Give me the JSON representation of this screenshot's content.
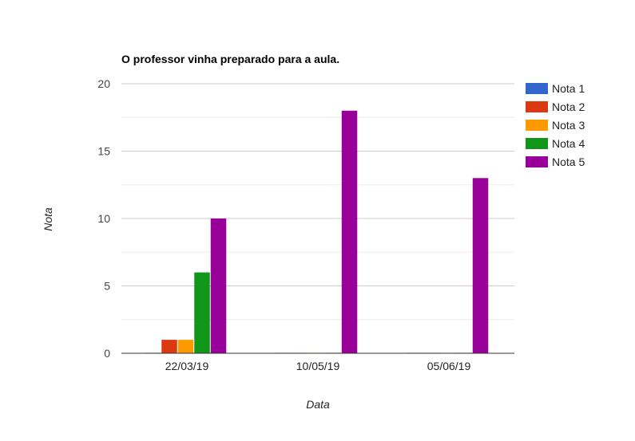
{
  "chart_data": {
    "type": "bar",
    "title": "O professor vinha preparado para a aula.",
    "xlabel": "Data",
    "ylabel": "Nota",
    "categories": [
      "22/03/19",
      "10/05/19",
      "05/06/19"
    ],
    "series": [
      {
        "name": "Nota 1",
        "color": "#3366cc",
        "values": [
          0,
          0,
          0
        ]
      },
      {
        "name": "Nota 2",
        "color": "#dc3912",
        "values": [
          1,
          0,
          0
        ]
      },
      {
        "name": "Nota 3",
        "color": "#ff9900",
        "values": [
          1,
          0,
          0
        ]
      },
      {
        "name": "Nota 4",
        "color": "#109618",
        "values": [
          6,
          0,
          0
        ]
      },
      {
        "name": "Nota 5",
        "color": "#990099",
        "values": [
          10,
          18,
          13
        ]
      }
    ],
    "ylim": [
      0,
      20
    ],
    "yticks": [
      0,
      5,
      10,
      15,
      20
    ],
    "grid": true,
    "legend_position": "right"
  }
}
